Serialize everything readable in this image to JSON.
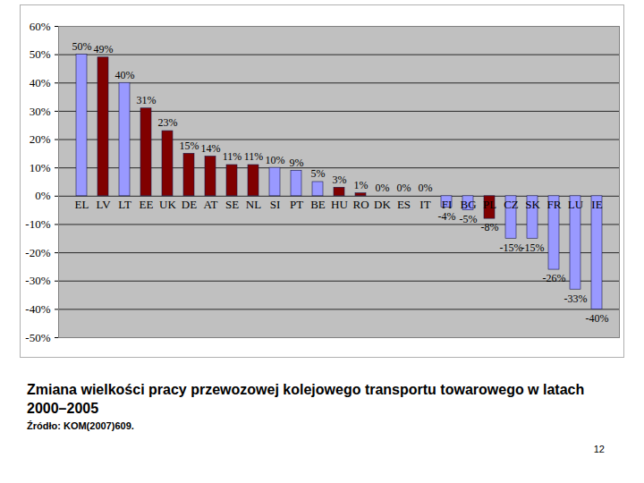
{
  "chart_data": {
    "type": "bar",
    "title": "Zmiana wielkości pracy przewozowej kolejowego transportu towarowego w latach 2000–2005",
    "annotations": [
      "Źródło: KOM(2007)609.",
      "12"
    ],
    "categories": [
      "EL",
      "LV",
      "LT",
      "EE",
      "UK",
      "DE",
      "AT",
      "SE",
      "NL",
      "SI",
      "PT",
      "BE",
      "HU",
      "RO",
      "DK",
      "ES",
      "IT",
      "FI",
      "BG",
      "PL",
      "CZ",
      "SK",
      "FR",
      "LU",
      "IE"
    ],
    "values": [
      50,
      49,
      40,
      31,
      23,
      15,
      14,
      11,
      11,
      10,
      9,
      5,
      3,
      1,
      0,
      0,
      0,
      -4,
      -5,
      -8,
      -15,
      -15,
      -26,
      -33,
      -40
    ],
    "value_labels": [
      "50%",
      "49%",
      "40%",
      "31%",
      "23%",
      "15%",
      "14%",
      "11%",
      "11%",
      "10%",
      "9%",
      "5%",
      "3%",
      "1%",
      "0%",
      "0%",
      "0%",
      "-4%",
      "-5%",
      "-8%",
      "-15%",
      "-15%",
      "-26%",
      "-33%",
      "-40%"
    ],
    "colors": [
      "#9999ff",
      "#800000",
      "#9999ff",
      "#800000",
      "#800000",
      "#800000",
      "#800000",
      "#800000",
      "#800000",
      "#9999ff",
      "#9999ff",
      "#9999ff",
      "#800000",
      "#800000",
      "#9999ff",
      "#9999ff",
      "#9999ff",
      "#9999ff",
      "#9999ff",
      "#800000",
      "#9999ff",
      "#9999ff",
      "#9999ff",
      "#9999ff",
      "#9999ff"
    ],
    "ylim": [
      -50,
      60
    ],
    "yticks": [
      {
        "value": -50,
        "label": "-50%"
      },
      {
        "value": -40,
        "label": "-40%"
      },
      {
        "value": -30,
        "label": "-30%"
      },
      {
        "value": -20,
        "label": "-20%"
      },
      {
        "value": -10,
        "label": "-10%"
      },
      {
        "value": 0,
        "label": "0%"
      },
      {
        "value": 10,
        "label": "10%"
      },
      {
        "value": 20,
        "label": "20%"
      },
      {
        "value": 30,
        "label": "30%"
      },
      {
        "value": 40,
        "label": "40%"
      },
      {
        "value": 50,
        "label": "50%"
      },
      {
        "value": 60,
        "label": "60%"
      }
    ],
    "grid": true,
    "data_labels": true
  }
}
